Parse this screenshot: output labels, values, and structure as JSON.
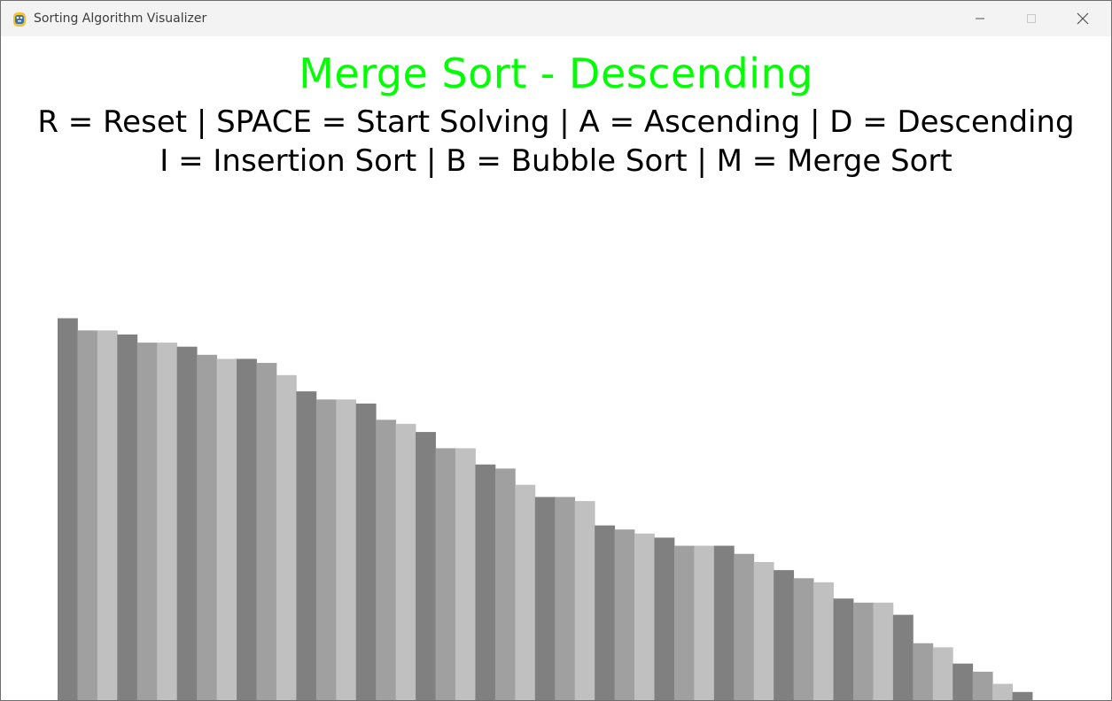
{
  "window": {
    "title": "Sorting Algorithm Visualizer",
    "app_icon": "python-snake-icon",
    "buttons": [
      "minimize-icon",
      "maximize-icon",
      "close-icon"
    ]
  },
  "header": {
    "algorithm_title": "Merge Sort - Descending",
    "controls_line_1": "R = Reset | SPACE = Start Solving | A = Ascending | D = Descending",
    "controls_line_2": "I = Insertion Sort | B = Bubble Sort | M = Merge Sort",
    "title_color": "#00ff00",
    "text_color": "#000000"
  },
  "visualizer": {
    "order": "descending",
    "bar_shades": [
      "#808080",
      "#a0a0a0",
      "#c0c0c0"
    ],
    "values": [
      94,
      91,
      91,
      90,
      88,
      88,
      87,
      85,
      84,
      84,
      83,
      80,
      76,
      74,
      74,
      73,
      69,
      68,
      66,
      62,
      62,
      58,
      57,
      53,
      50,
      50,
      49,
      43,
      42,
      41,
      40,
      38,
      38,
      38,
      36,
      34,
      32,
      30,
      29,
      25,
      24,
      24,
      21,
      14,
      13,
      9,
      7,
      4,
      2
    ],
    "value_max": 100
  }
}
